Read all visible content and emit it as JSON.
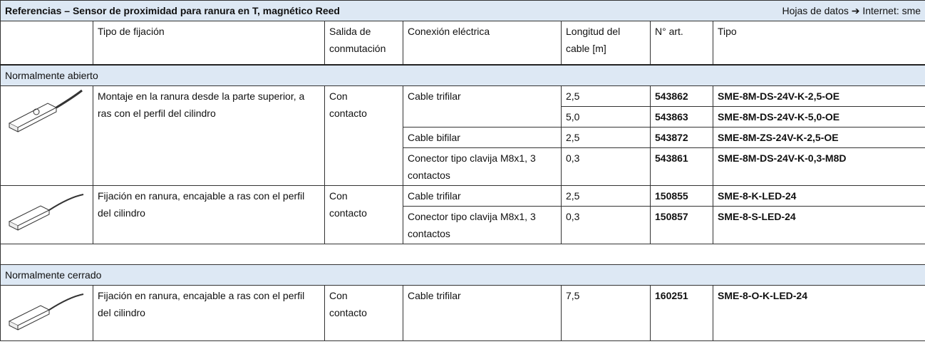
{
  "header": {
    "title": "Referencias – Sensor de proximidad para ranura en T, magnético Reed",
    "link": "Hojas de datos ➔ Internet: sme"
  },
  "columns": [
    "Tipo de fijación",
    "Salida de conmutación",
    "Conexión eléctrica",
    "Longitud del cable [m]",
    "N° art.",
    "Tipo"
  ],
  "sections": [
    {
      "label": "Normalmente abierto",
      "products": [
        {
          "fixing": "Montaje en la ranura desde la parte superior, a ras con el perfil del cilindro",
          "output": "Con contacto",
          "connections": [
            {
              "name": "Cable trifilar",
              "variants": [
                {
                  "length": "2,5",
                  "part": "543862",
                  "type": "SME-8M-DS-24V-K-2,5-OE"
                },
                {
                  "length": "5,0",
                  "part": "543863",
                  "type": "SME-8M-DS-24V-K-5,0-OE"
                }
              ]
            },
            {
              "name": "Cable bifilar",
              "variants": [
                {
                  "length": "2,5",
                  "part": "543872",
                  "type": "SME-8M-ZS-24V-K-2,5-OE"
                }
              ]
            },
            {
              "name": "Conector tipo clavija M8x1, 3 contactos",
              "variants": [
                {
                  "length": "0,3",
                  "part": "543861",
                  "type": "SME-8M-DS-24V-K-0,3-M8D"
                }
              ]
            }
          ]
        },
        {
          "fixing": "Fijación en ranura, encajable a ras con el perfil del cilindro",
          "output": "Con contacto",
          "connections": [
            {
              "name": "Cable trifilar",
              "variants": [
                {
                  "length": "2,5",
                  "part": "150855",
                  "type": "SME-8-K-LED-24"
                }
              ]
            },
            {
              "name": "Conector tipo clavija M8x1, 3 contactos",
              "variants": [
                {
                  "length": "0,3",
                  "part": "150857",
                  "type": "SME-8-S-LED-24"
                }
              ]
            }
          ]
        }
      ]
    },
    {
      "label": "Normalmente cerrado",
      "products": [
        {
          "fixing": "Fijación en ranura, encajable a ras con el perfil del cilindro",
          "output": "Con contacto",
          "connections": [
            {
              "name": "Cable trifilar",
              "variants": [
                {
                  "length": "7,5",
                  "part": "160251",
                  "type": "SME-8-O-K-LED-24"
                }
              ]
            }
          ]
        }
      ]
    }
  ]
}
